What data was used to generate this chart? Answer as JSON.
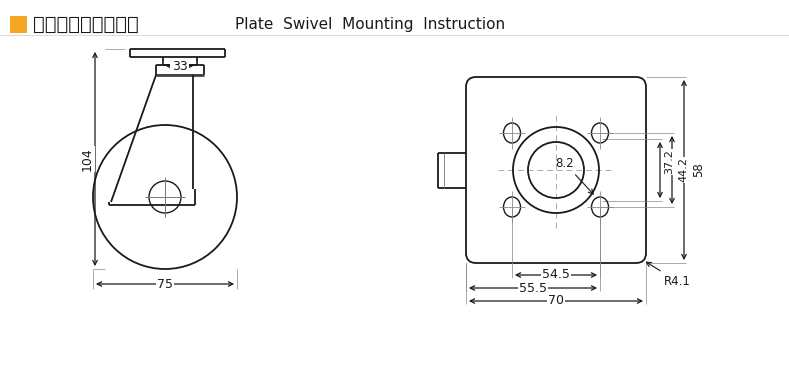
{
  "title_cn": "平顶万向安装尺寸图",
  "title_en": "Plate  Swivel  Mounting  Instruction",
  "orange_box_color": "#F5A623",
  "line_color": "#1a1a1a",
  "bg_color": "#ffffff",
  "dim33": "33",
  "dim104": "104",
  "dim75": "75",
  "dim545": "54.5",
  "dim555": "55.5",
  "dim70": "70",
  "dim82": "8.2",
  "dim372": "37.2",
  "dim442": "44.2",
  "dim58": "58",
  "dimR41": "R4.1"
}
